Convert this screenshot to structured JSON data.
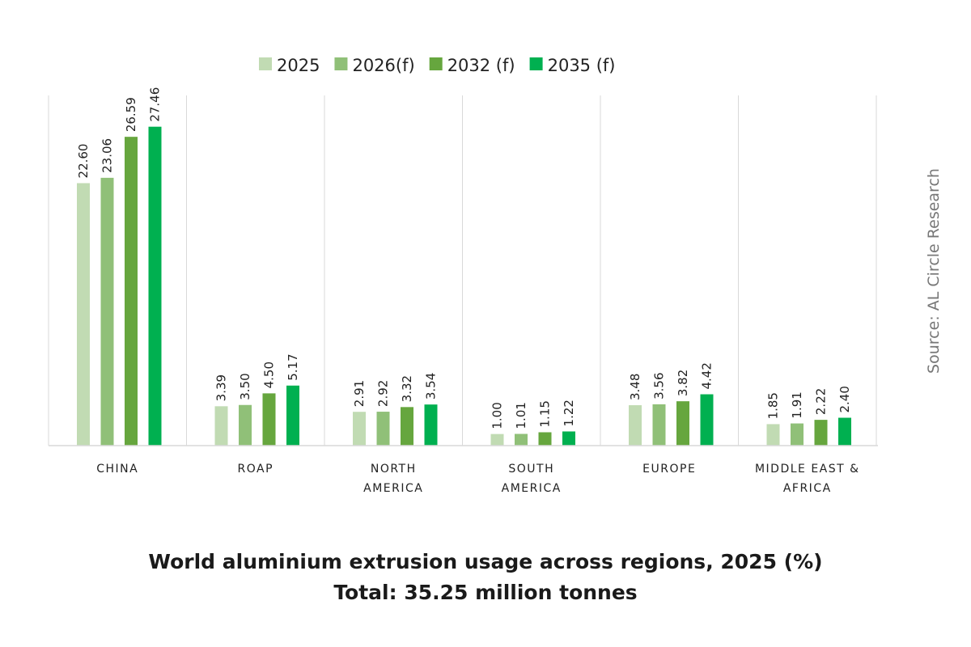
{
  "chart_data": {
    "type": "bar",
    "title": "World aluminium extrusion usage across regions, 2025 (%)",
    "subtitle": "Total: 35.25 million tonnes",
    "source": "Source: AL Circle Research",
    "categories": [
      [
        "CHINA"
      ],
      [
        "ROAP"
      ],
      [
        "NORTH",
        "AMERICA"
      ],
      [
        "SOUTH",
        "AMERICA"
      ],
      [
        "EUROPE"
      ],
      [
        "MIDDLE EAST &",
        "AFRICA"
      ]
    ],
    "series": [
      {
        "name": "2025",
        "color": "#c1dbb3",
        "values": [
          22.6,
          3.39,
          2.91,
          1.0,
          3.48,
          1.85
        ],
        "labels": [
          "22.60",
          "3.39",
          "2.91",
          "1.00",
          "3.48",
          "1.85"
        ]
      },
      {
        "name": "2026(f)",
        "color": "#90c078",
        "values": [
          23.06,
          3.5,
          2.92,
          1.01,
          3.56,
          1.91
        ],
        "labels": [
          "23.06",
          "3.50",
          "2.92",
          "1.01",
          "3.56",
          "1.91"
        ]
      },
      {
        "name": "2032 (f)",
        "color": "#66a63e",
        "values": [
          26.59,
          4.5,
          3.32,
          1.15,
          3.82,
          2.22
        ],
        "labels": [
          "26.59",
          "4.50",
          "3.32",
          "1.15",
          "3.82",
          "2.22"
        ]
      },
      {
        "name": "2035 (f)",
        "color": "#00b050",
        "values": [
          27.46,
          5.17,
          3.54,
          1.22,
          4.42,
          2.4
        ],
        "labels": [
          "27.46",
          "5.17",
          "3.54",
          "1.22",
          "4.42",
          "2.40"
        ]
      }
    ],
    "ylim": [
      0,
      28
    ],
    "grid": false,
    "legend_position": "top-center"
  }
}
